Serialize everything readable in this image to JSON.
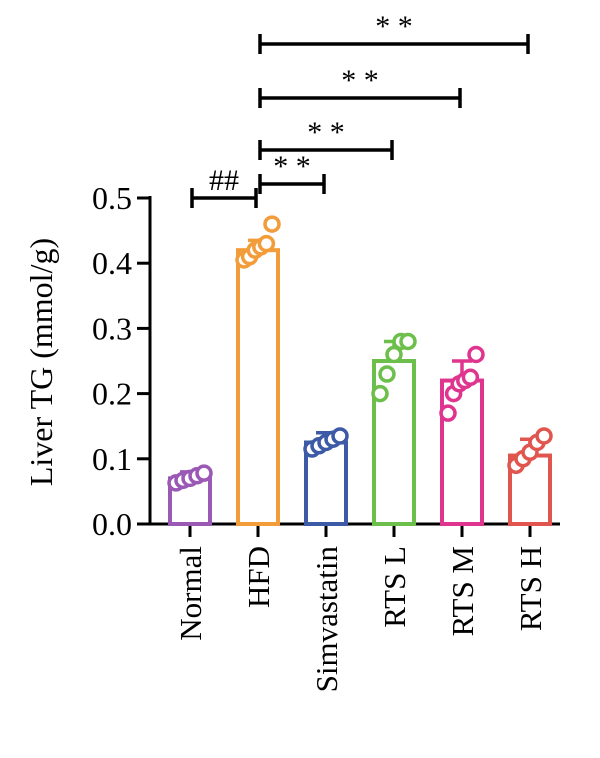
{
  "chart_data": {
    "type": "bar",
    "title": "",
    "xlabel": "",
    "ylabel": "Liver TG (mmol/g)",
    "ylim": [
      0,
      0.5
    ],
    "yticks": [
      0.0,
      0.1,
      0.2,
      0.3,
      0.4,
      0.5
    ],
    "ytick_labels": [
      "0.0",
      "0.1",
      "0.2",
      "0.3",
      "0.4",
      "0.5"
    ],
    "categories": [
      "Normal",
      "HFD",
      "Simvastatin",
      "RTS L",
      "RTS M",
      "RTS H"
    ],
    "values": [
      0.07,
      0.42,
      0.125,
      0.25,
      0.22,
      0.105
    ],
    "errors": [
      0.01,
      0.015,
      0.015,
      0.03,
      0.03,
      0.025
    ],
    "colors": [
      "#9b59b6",
      "#f39c3a",
      "#3c5aa6",
      "#6cbf4b",
      "#e0358f",
      "#e0564f"
    ],
    "points": [
      [
        0.063,
        0.067,
        0.07,
        0.074,
        0.078
      ],
      [
        0.405,
        0.41,
        0.42,
        0.425,
        0.43,
        0.46
      ],
      [
        0.115,
        0.12,
        0.125,
        0.13,
        0.135
      ],
      [
        0.2,
        0.23,
        0.26,
        0.28,
        0.28
      ],
      [
        0.17,
        0.2,
        0.215,
        0.22,
        0.225,
        0.26
      ],
      [
        0.09,
        0.1,
        0.11,
        0.125,
        0.135
      ]
    ],
    "grid": false,
    "significance": [
      {
        "from": "Normal",
        "to": "HFD",
        "label": "##"
      },
      {
        "from": "HFD",
        "to": "Simvastatin",
        "label": "* *"
      },
      {
        "from": "HFD",
        "to": "RTS L",
        "label": "* *"
      },
      {
        "from": "HFD",
        "to": "RTS M",
        "label": "* *"
      },
      {
        "from": "HFD",
        "to": "RTS H",
        "label": "* *"
      }
    ]
  }
}
